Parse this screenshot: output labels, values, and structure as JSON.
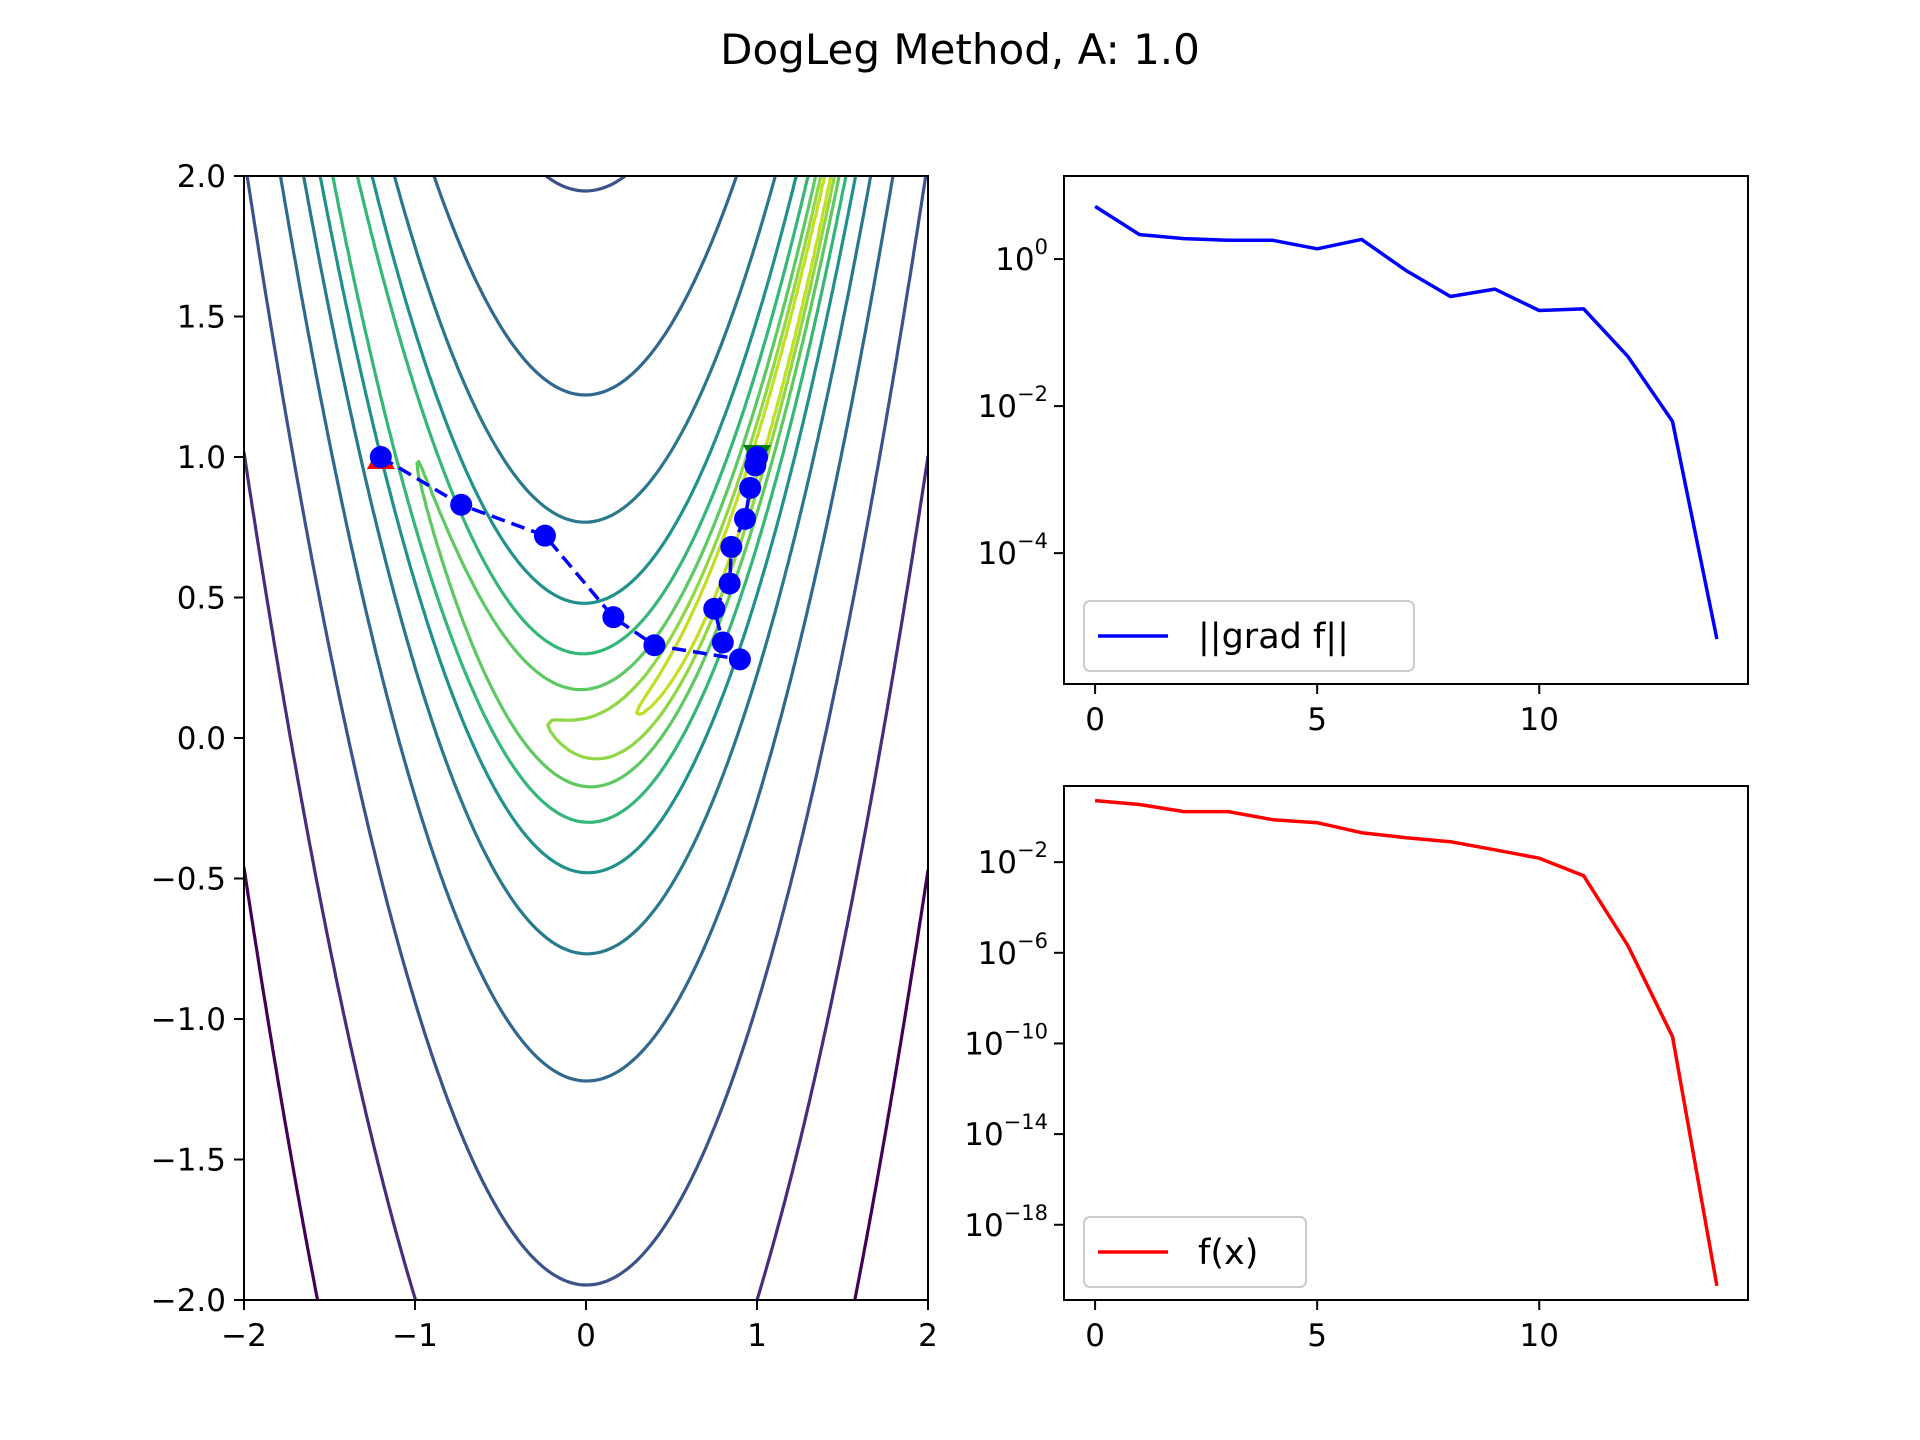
{
  "title": "DogLeg Method, A: 1.0",
  "colors": {
    "path": "#0000ff",
    "start_marker": "#ff0000",
    "end_marker": "#008000",
    "grad_line": "#0000ff",
    "f_line": "#ff0000"
  },
  "chart_data": [
    {
      "type": "contour",
      "xlim": [
        -2,
        2
      ],
      "ylim": [
        -2,
        2
      ],
      "xticks": [
        "−2",
        "−1",
        "0",
        "1",
        "2"
      ],
      "yticks": [
        "−2.0",
        "−1.5",
        "−1.0",
        "−0.5",
        "0.0",
        "0.5",
        "1.0",
        "1.5",
        "2.0"
      ],
      "colormap": "viridis",
      "start_marker": {
        "shape": "triangle-up",
        "x": -1.2,
        "y": 1.0
      },
      "end_marker": {
        "shape": "triangle-down",
        "x": 1.0,
        "y": 1.0
      },
      "path": {
        "style": "dashed with circle markers",
        "x": [
          -1.2,
          -0.73,
          -0.24,
          0.16,
          0.4,
          0.9,
          0.8,
          0.75,
          0.84,
          0.85,
          0.93,
          0.96,
          0.99,
          1.0
        ],
        "y": [
          1.0,
          0.83,
          0.72,
          0.43,
          0.33,
          0.28,
          0.34,
          0.46,
          0.55,
          0.68,
          0.78,
          0.89,
          0.97,
          1.0
        ]
      }
    },
    {
      "type": "line",
      "yscale": "log",
      "xlim": [
        -0.7,
        14.7
      ],
      "xticks": [
        "0",
        "5",
        "10"
      ],
      "yticks": [
        {
          "base": "10",
          "exp": "0"
        },
        {
          "base": "10",
          "exp": "−2"
        },
        {
          "base": "10",
          "exp": "−4"
        }
      ],
      "legend": {
        "position": "lower-left",
        "label": "||grad f||"
      },
      "series": [
        {
          "name": "||grad f||",
          "x": [
            0,
            1,
            2,
            3,
            4,
            5,
            6,
            7,
            8,
            9,
            10,
            11,
            12,
            13,
            14
          ],
          "y": [
            5.2,
            2.15,
            1.9,
            1.8,
            1.8,
            1.38,
            1.85,
            0.7,
            0.31,
            0.39,
            0.2,
            0.21,
            0.047,
            0.0062,
            6.8e-06
          ]
        }
      ]
    },
    {
      "type": "line",
      "yscale": "log",
      "xlim": [
        -0.7,
        14.7
      ],
      "xticks": [
        "0",
        "5",
        "10"
      ],
      "yticks": [
        {
          "base": "10",
          "exp": "−2"
        },
        {
          "base": "10",
          "exp": "−6"
        },
        {
          "base": "10",
          "exp": "−10"
        },
        {
          "base": "10",
          "exp": "−14"
        },
        {
          "base": "10",
          "exp": "−18"
        }
      ],
      "legend": {
        "position": "lower-left",
        "label": "f(x)"
      },
      "series": [
        {
          "name": "f(x)",
          "x": [
            0,
            1,
            2,
            3,
            4,
            5,
            6,
            7,
            8,
            9,
            10,
            11,
            12,
            13,
            14
          ],
          "y": [
            5.2,
            3.5,
            1.7,
            1.7,
            0.75,
            0.55,
            0.2,
            0.12,
            0.08,
            0.035,
            0.015,
            0.0025,
            2e-06,
            2e-10,
            2e-21
          ]
        }
      ]
    }
  ]
}
